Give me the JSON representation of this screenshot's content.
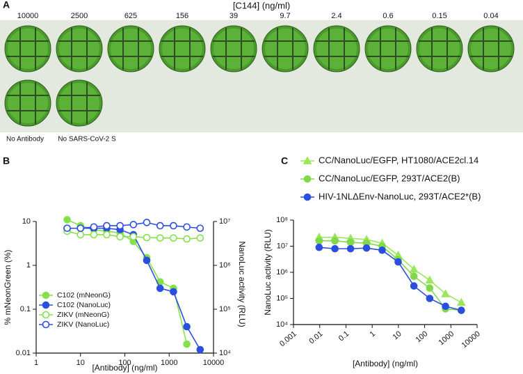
{
  "panel_a": {
    "label": "A",
    "title": "[C144] (ng/ml)",
    "concentrations": [
      "10000",
      "2500",
      "625",
      "156",
      "39",
      "9.7",
      "2.4",
      "0.6",
      "0.15",
      "0.04"
    ],
    "controls": [
      "No Antibody",
      "No SARS-CoV-2 S"
    ]
  },
  "chart_data": [
    {
      "type": "line",
      "label": "B",
      "x_label": "[Antibody] (ng/ml)",
      "y_label": "% mNeonGreen (%)",
      "y2_label": "NanoLuc activity (RLU)",
      "xlog": true,
      "ylog": true,
      "y2log": true,
      "xlim": [
        1,
        10000
      ],
      "xticks": [
        1,
        10,
        100,
        1000,
        10000
      ],
      "ylim": [
        0.01,
        10
      ],
      "yticks": [
        0.01,
        0.1,
        1,
        10
      ],
      "y2lim": [
        10000,
        10000000
      ],
      "y2ticks": [
        {
          "value": 10000,
          "label": "10⁴"
        },
        {
          "value": 100000,
          "label": "10⁵"
        },
        {
          "value": 1000000,
          "label": "10⁶"
        },
        {
          "value": 10000000,
          "label": "10⁷"
        }
      ],
      "legend": "lower left",
      "x": [
        5,
        10,
        20,
        39,
        78,
        156,
        312,
        625,
        1250,
        2500,
        5000
      ],
      "series": [
        {
          "name": "C102 (mNeonG)",
          "color": "#86e04c",
          "marker": "circle",
          "filled": true,
          "values": [
            11,
            8,
            6.5,
            6,
            5.5,
            3.5,
            1.5,
            0.42,
            0.3,
            0.016,
            null
          ]
        },
        {
          "name": "C102 (NanoLuc)",
          "color": "#2b4ee0",
          "marker": "circle",
          "filled": true,
          "axis": "y2",
          "values": [
            7000000,
            7000000,
            7000000,
            7000000,
            6500000,
            5000000,
            1300000,
            300000,
            250000,
            40000,
            12000
          ]
        },
        {
          "name": "ZIKV (mNeonG)",
          "color": "#86e04c",
          "marker": "circle",
          "filled": false,
          "values": [
            6,
            5,
            5,
            5,
            4.5,
            4.5,
            4.3,
            4.2,
            4.2,
            4,
            4.2
          ]
        },
        {
          "name": "ZIKV (NanoLuc)",
          "color": "#2b4ee0",
          "marker": "circle",
          "filled": false,
          "axis": "y2",
          "values": [
            7000000,
            7000000,
            7500000,
            8000000,
            8000000,
            8500000,
            9500000,
            8000000,
            8000000,
            7500000,
            7000000
          ]
        }
      ]
    },
    {
      "type": "line",
      "label": "C",
      "x_label": "[Antibody] (ng/ml)",
      "y_label": "NanoLuc activity (RLU)",
      "xlog": true,
      "ylog": true,
      "xlim": [
        0.001,
        10000
      ],
      "xticks": [
        0.001,
        0.01,
        0.1,
        1,
        10,
        100,
        1000,
        10000
      ],
      "ylim": [
        10000,
        100000000
      ],
      "yticks": [
        {
          "value": 10000,
          "label": "10⁴"
        },
        {
          "value": 100000,
          "label": "10⁵"
        },
        {
          "value": 1000000,
          "label": "10⁶"
        },
        {
          "value": 10000000,
          "label": "10⁷"
        },
        {
          "value": 100000000,
          "label": "10⁸"
        }
      ],
      "legend": "top",
      "x": [
        0.0095,
        0.038,
        0.15,
        0.61,
        2.4,
        9.8,
        39,
        156,
        625,
        2500
      ],
      "series": [
        {
          "name": "CC/NanoLuc/EGFP, HT1080/ACE2cl.14",
          "color": "#9be65a",
          "marker": "triangle",
          "filled": true,
          "values": [
            22000000,
            22000000,
            20000000,
            18000000,
            13000000,
            4500000,
            1300000,
            500000,
            150000,
            70000
          ]
        },
        {
          "name": "CC/NanoLuc/EGFP, 293T/ACE2(B)",
          "color": "#7fd94a",
          "marker": "circle",
          "filled": true,
          "values": [
            16000000,
            16000000,
            14000000,
            13000000,
            10000000,
            3000000,
            700000,
            250000,
            40000,
            35000
          ]
        },
        {
          "name": "HIV-1NLΔEnv-NanoLuc, 293T/ACE2*(B)",
          "color": "#2b4ee0",
          "marker": "circle",
          "filled": true,
          "values": [
            9000000,
            8000000,
            8000000,
            8500000,
            7000000,
            2500000,
            300000,
            100000,
            50000,
            35000
          ]
        }
      ]
    }
  ]
}
